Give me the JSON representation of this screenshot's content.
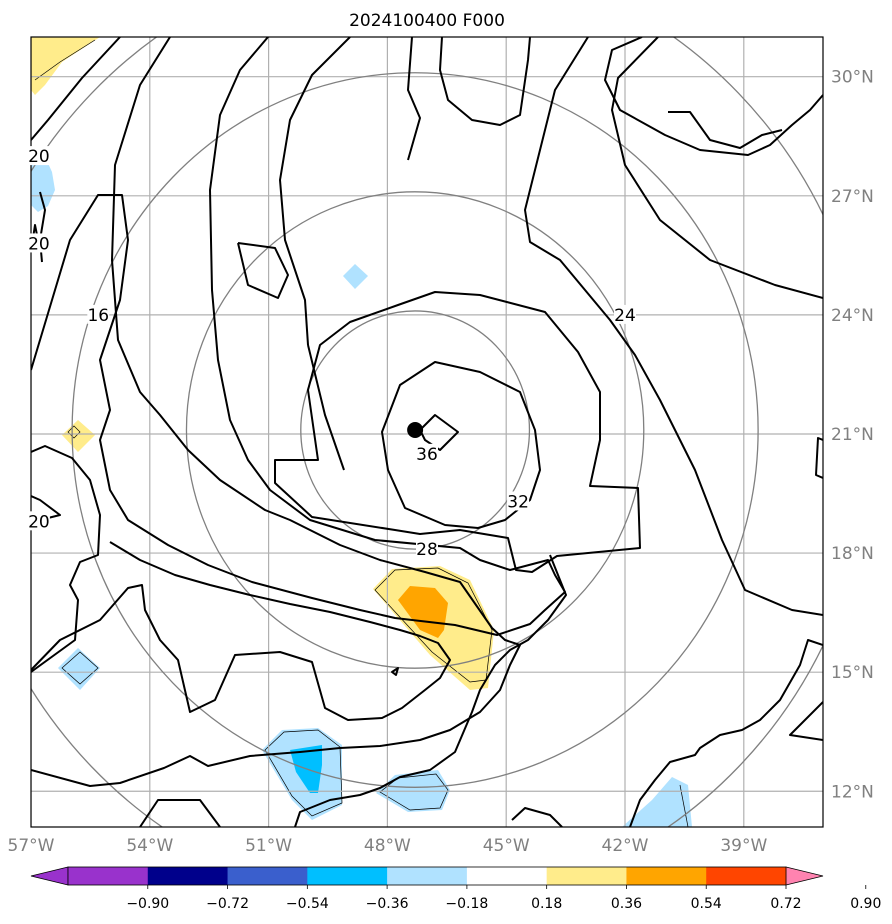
{
  "chart_data": {
    "type": "contour",
    "title": "2024100400 F000",
    "x_axis": {
      "ticks": [
        -57,
        -54,
        -51,
        -48,
        -45,
        -42,
        -39
      ],
      "tick_labels": [
        "57°W",
        "54°W",
        "51°W",
        "48°W",
        "45°W",
        "42°W",
        "39°W"
      ],
      "range": [
        -57,
        -37
      ]
    },
    "y_axis": {
      "ticks": [
        12,
        15,
        18,
        21,
        24,
        27,
        30
      ],
      "tick_labels": [
        "12°N",
        "15°N",
        "18°N",
        "21°N",
        "24°N",
        "27°N",
        "30°N"
      ],
      "range": [
        11.1,
        31
      ]
    },
    "grid": true,
    "storm_center": {
      "lon": -47.3,
      "lat": 21.1
    },
    "range_rings_deg": [
      3,
      6,
      9,
      12
    ],
    "contour_labels": [
      {
        "text": "36",
        "lon": -47.0,
        "lat": 20.5
      },
      {
        "text": "32",
        "lon": -44.7,
        "lat": 19.3
      },
      {
        "text": "28",
        "lon": -47.0,
        "lat": 18.1
      },
      {
        "text": "24",
        "lon": -42.0,
        "lat": 24.0
      },
      {
        "text": "16",
        "lon": -55.3,
        "lat": 24.0
      },
      {
        "text": "20",
        "lon": -56.8,
        "lat": 28.0
      },
      {
        "text": "20",
        "lon": -56.8,
        "lat": 25.8
      },
      {
        "text": "20",
        "lon": -56.8,
        "lat": 18.8
      }
    ],
    "colorbar": {
      "levels": [
        -0.9,
        -0.72,
        -0.54,
        -0.36,
        -0.18,
        0.18,
        0.36,
        0.54,
        0.72,
        0.9
      ],
      "labels": [
        "−0.90",
        "−0.72",
        "−0.54",
        "−0.36",
        "−0.18",
        "0.18",
        "0.36",
        "0.54",
        "0.72",
        "0.90"
      ],
      "colors": [
        "#9932cc",
        "#00008b",
        "#3a5fcd",
        "#00bfff",
        "#b0e2ff",
        "#ffffff",
        "#ffec8b",
        "#ffa500",
        "#ff4500",
        "#b22222",
        "#ff83b0"
      ]
    }
  }
}
